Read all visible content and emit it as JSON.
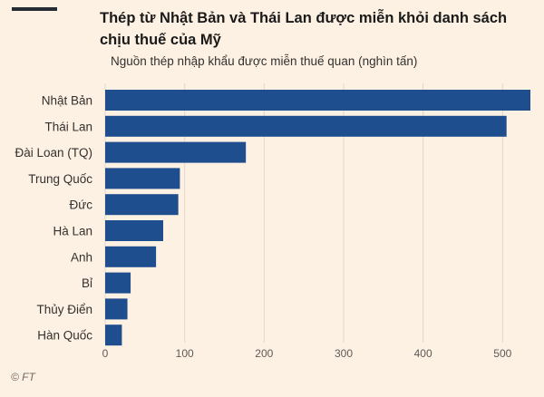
{
  "title": "Thép từ Nhật Bản và Thái Lan được miễn khỏi danh sách chịu thuế của Mỹ",
  "subtitle": "Nguồn thép nhập khẩu được miễn thuế quan (nghìn tấn)",
  "credit": "© FT",
  "colors": {
    "bar": "#1f4e8f",
    "background": "#fdf1e3",
    "grid": "#e3d6c7",
    "text": "#33302e"
  },
  "chart_data": {
    "type": "bar",
    "orientation": "horizontal",
    "categories": [
      "Nhật Bản",
      "Thái Lan",
      "Đài Loan (TQ)",
      "Trung Quốc",
      "Đức",
      "Hà Lan",
      "Anh",
      "Bỉ",
      "Thủy Điển",
      "Hàn Quốc"
    ],
    "values": [
      535,
      505,
      177,
      94,
      92,
      73,
      64,
      32,
      28,
      21
    ],
    "xlim": [
      0,
      535
    ],
    "xticks": [
      0,
      100,
      200,
      300,
      400,
      500
    ],
    "grid": true,
    "xlabel": "",
    "ylabel": ""
  }
}
